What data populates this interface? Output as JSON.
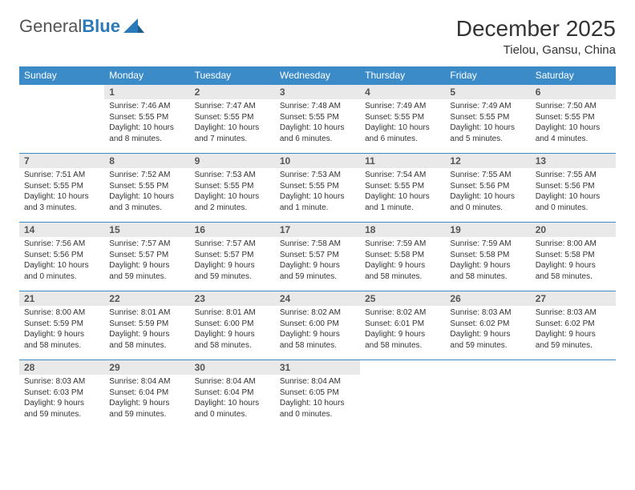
{
  "brand": {
    "part1": "General",
    "part2": "Blue"
  },
  "title": "December 2025",
  "location": "Tielou, Gansu, China",
  "colors": {
    "header_bg": "#3b8bc9",
    "daynum_bg": "#e9e9e9",
    "border": "#3b8bc9",
    "brand_accent": "#2a7ab9"
  },
  "weekdays": [
    "Sunday",
    "Monday",
    "Tuesday",
    "Wednesday",
    "Thursday",
    "Friday",
    "Saturday"
  ],
  "leading_blanks": 1,
  "days": [
    {
      "n": 1,
      "sunrise": "7:46 AM",
      "sunset": "5:55 PM",
      "daylight": "10 hours and 8 minutes."
    },
    {
      "n": 2,
      "sunrise": "7:47 AM",
      "sunset": "5:55 PM",
      "daylight": "10 hours and 7 minutes."
    },
    {
      "n": 3,
      "sunrise": "7:48 AM",
      "sunset": "5:55 PM",
      "daylight": "10 hours and 6 minutes."
    },
    {
      "n": 4,
      "sunrise": "7:49 AM",
      "sunset": "5:55 PM",
      "daylight": "10 hours and 6 minutes."
    },
    {
      "n": 5,
      "sunrise": "7:49 AM",
      "sunset": "5:55 PM",
      "daylight": "10 hours and 5 minutes."
    },
    {
      "n": 6,
      "sunrise": "7:50 AM",
      "sunset": "5:55 PM",
      "daylight": "10 hours and 4 minutes."
    },
    {
      "n": 7,
      "sunrise": "7:51 AM",
      "sunset": "5:55 PM",
      "daylight": "10 hours and 3 minutes."
    },
    {
      "n": 8,
      "sunrise": "7:52 AM",
      "sunset": "5:55 PM",
      "daylight": "10 hours and 3 minutes."
    },
    {
      "n": 9,
      "sunrise": "7:53 AM",
      "sunset": "5:55 PM",
      "daylight": "10 hours and 2 minutes."
    },
    {
      "n": 10,
      "sunrise": "7:53 AM",
      "sunset": "5:55 PM",
      "daylight": "10 hours and 1 minute."
    },
    {
      "n": 11,
      "sunrise": "7:54 AM",
      "sunset": "5:55 PM",
      "daylight": "10 hours and 1 minute."
    },
    {
      "n": 12,
      "sunrise": "7:55 AM",
      "sunset": "5:56 PM",
      "daylight": "10 hours and 0 minutes."
    },
    {
      "n": 13,
      "sunrise": "7:55 AM",
      "sunset": "5:56 PM",
      "daylight": "10 hours and 0 minutes."
    },
    {
      "n": 14,
      "sunrise": "7:56 AM",
      "sunset": "5:56 PM",
      "daylight": "10 hours and 0 minutes."
    },
    {
      "n": 15,
      "sunrise": "7:57 AM",
      "sunset": "5:57 PM",
      "daylight": "9 hours and 59 minutes."
    },
    {
      "n": 16,
      "sunrise": "7:57 AM",
      "sunset": "5:57 PM",
      "daylight": "9 hours and 59 minutes."
    },
    {
      "n": 17,
      "sunrise": "7:58 AM",
      "sunset": "5:57 PM",
      "daylight": "9 hours and 59 minutes."
    },
    {
      "n": 18,
      "sunrise": "7:59 AM",
      "sunset": "5:58 PM",
      "daylight": "9 hours and 58 minutes."
    },
    {
      "n": 19,
      "sunrise": "7:59 AM",
      "sunset": "5:58 PM",
      "daylight": "9 hours and 58 minutes."
    },
    {
      "n": 20,
      "sunrise": "8:00 AM",
      "sunset": "5:58 PM",
      "daylight": "9 hours and 58 minutes."
    },
    {
      "n": 21,
      "sunrise": "8:00 AM",
      "sunset": "5:59 PM",
      "daylight": "9 hours and 58 minutes."
    },
    {
      "n": 22,
      "sunrise": "8:01 AM",
      "sunset": "5:59 PM",
      "daylight": "9 hours and 58 minutes."
    },
    {
      "n": 23,
      "sunrise": "8:01 AM",
      "sunset": "6:00 PM",
      "daylight": "9 hours and 58 minutes."
    },
    {
      "n": 24,
      "sunrise": "8:02 AM",
      "sunset": "6:00 PM",
      "daylight": "9 hours and 58 minutes."
    },
    {
      "n": 25,
      "sunrise": "8:02 AM",
      "sunset": "6:01 PM",
      "daylight": "9 hours and 58 minutes."
    },
    {
      "n": 26,
      "sunrise": "8:03 AM",
      "sunset": "6:02 PM",
      "daylight": "9 hours and 59 minutes."
    },
    {
      "n": 27,
      "sunrise": "8:03 AM",
      "sunset": "6:02 PM",
      "daylight": "9 hours and 59 minutes."
    },
    {
      "n": 28,
      "sunrise": "8:03 AM",
      "sunset": "6:03 PM",
      "daylight": "9 hours and 59 minutes."
    },
    {
      "n": 29,
      "sunrise": "8:04 AM",
      "sunset": "6:04 PM",
      "daylight": "9 hours and 59 minutes."
    },
    {
      "n": 30,
      "sunrise": "8:04 AM",
      "sunset": "6:04 PM",
      "daylight": "10 hours and 0 minutes."
    },
    {
      "n": 31,
      "sunrise": "8:04 AM",
      "sunset": "6:05 PM",
      "daylight": "10 hours and 0 minutes."
    }
  ],
  "labels": {
    "sunrise": "Sunrise:",
    "sunset": "Sunset:",
    "daylight": "Daylight:"
  }
}
